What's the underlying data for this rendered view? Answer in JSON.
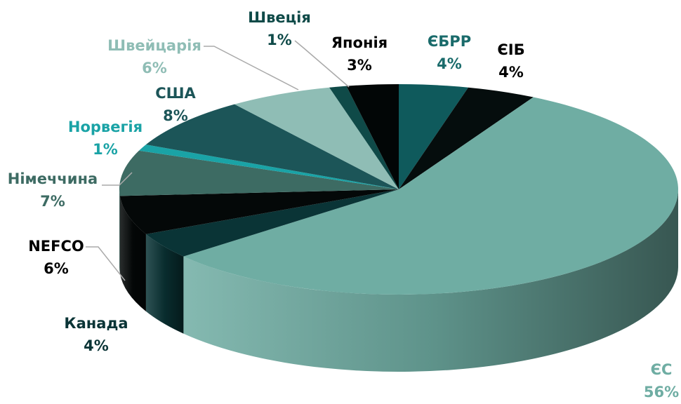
{
  "chart_data": {
    "type": "pie3d",
    "categories": [
      "ЄБРР",
      "ЄІБ",
      "ЄС",
      "Канада",
      "NEFCO",
      "Німеччина",
      "Норвегія",
      "США",
      "Швейцарія",
      "Швеція",
      "Японія"
    ],
    "values": [
      4,
      4,
      56,
      4,
      6,
      7,
      1,
      8,
      6,
      1,
      3
    ],
    "value_labels": [
      "4%",
      "4%",
      "56%",
      "4%",
      "6%",
      "7%",
      "1%",
      "8%",
      "6%",
      "1%",
      "3%"
    ],
    "colors": [
      "#0f5a5c",
      "#050d0d",
      "#6fada3",
      "#0a3436",
      "#040808",
      "#3d6b63",
      "#1aa3a6",
      "#1c5558",
      "#8fbdb5",
      "#0f4a48",
      "#020606"
    ],
    "label_colors": [
      "#1a6b6b",
      "#000000",
      "#6fada3",
      "#0a3436",
      "#000000",
      "#3d6b63",
      "#1aa3a6",
      "#1c5558",
      "#8fbdb5",
      "#0f4a48",
      "#000000"
    ]
  }
}
